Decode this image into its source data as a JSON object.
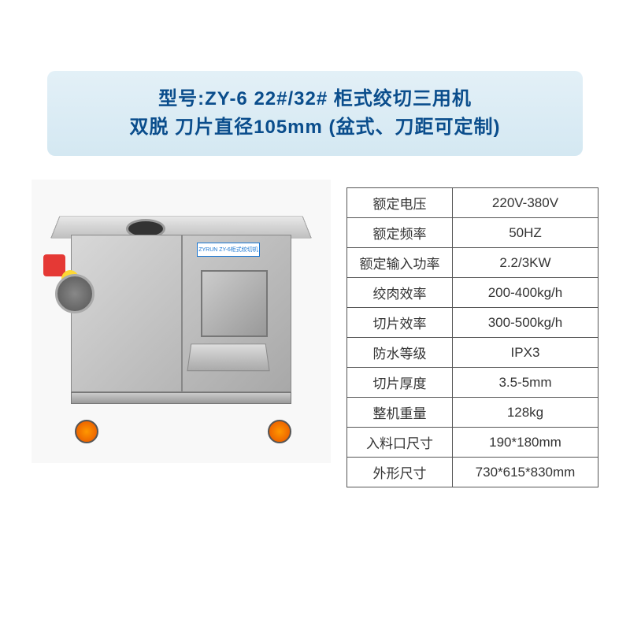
{
  "title": {
    "line1": "型号:ZY-6 22#/32# 柜式绞切三用机",
    "line2": "双脱 刀片直径105mm (盆式、刀距可定制)"
  },
  "machine_label": "ZYRUN ZY-6柜式绞切机",
  "spec_table": {
    "rows": [
      {
        "label": "额定电压",
        "value": "220V-380V"
      },
      {
        "label": "额定频率",
        "value": "50HZ"
      },
      {
        "label": "额定输入功率",
        "value": "2.2/3KW"
      },
      {
        "label": "绞肉效率",
        "value": "200-400kg/h"
      },
      {
        "label": "切片效率",
        "value": "300-500kg/h"
      },
      {
        "label": "防水等级",
        "value": "IPX3"
      },
      {
        "label": "切片厚度",
        "value": "3.5-5mm"
      },
      {
        "label": "整机重量",
        "value": "128kg"
      },
      {
        "label": "入料口尺寸",
        "value": "190*180mm"
      },
      {
        "label": "外形尺寸",
        "value": "730*615*830mm"
      }
    ]
  },
  "colors": {
    "banner_bg_top": "#e3f0f7",
    "banner_bg_bottom": "#d4e8f2",
    "title_text": "#0a4d8c",
    "table_border": "#555555",
    "table_text": "#333333",
    "button_red": "#e53935",
    "button_yellow": "#fdd835",
    "wheel_color": "#ff9800"
  }
}
